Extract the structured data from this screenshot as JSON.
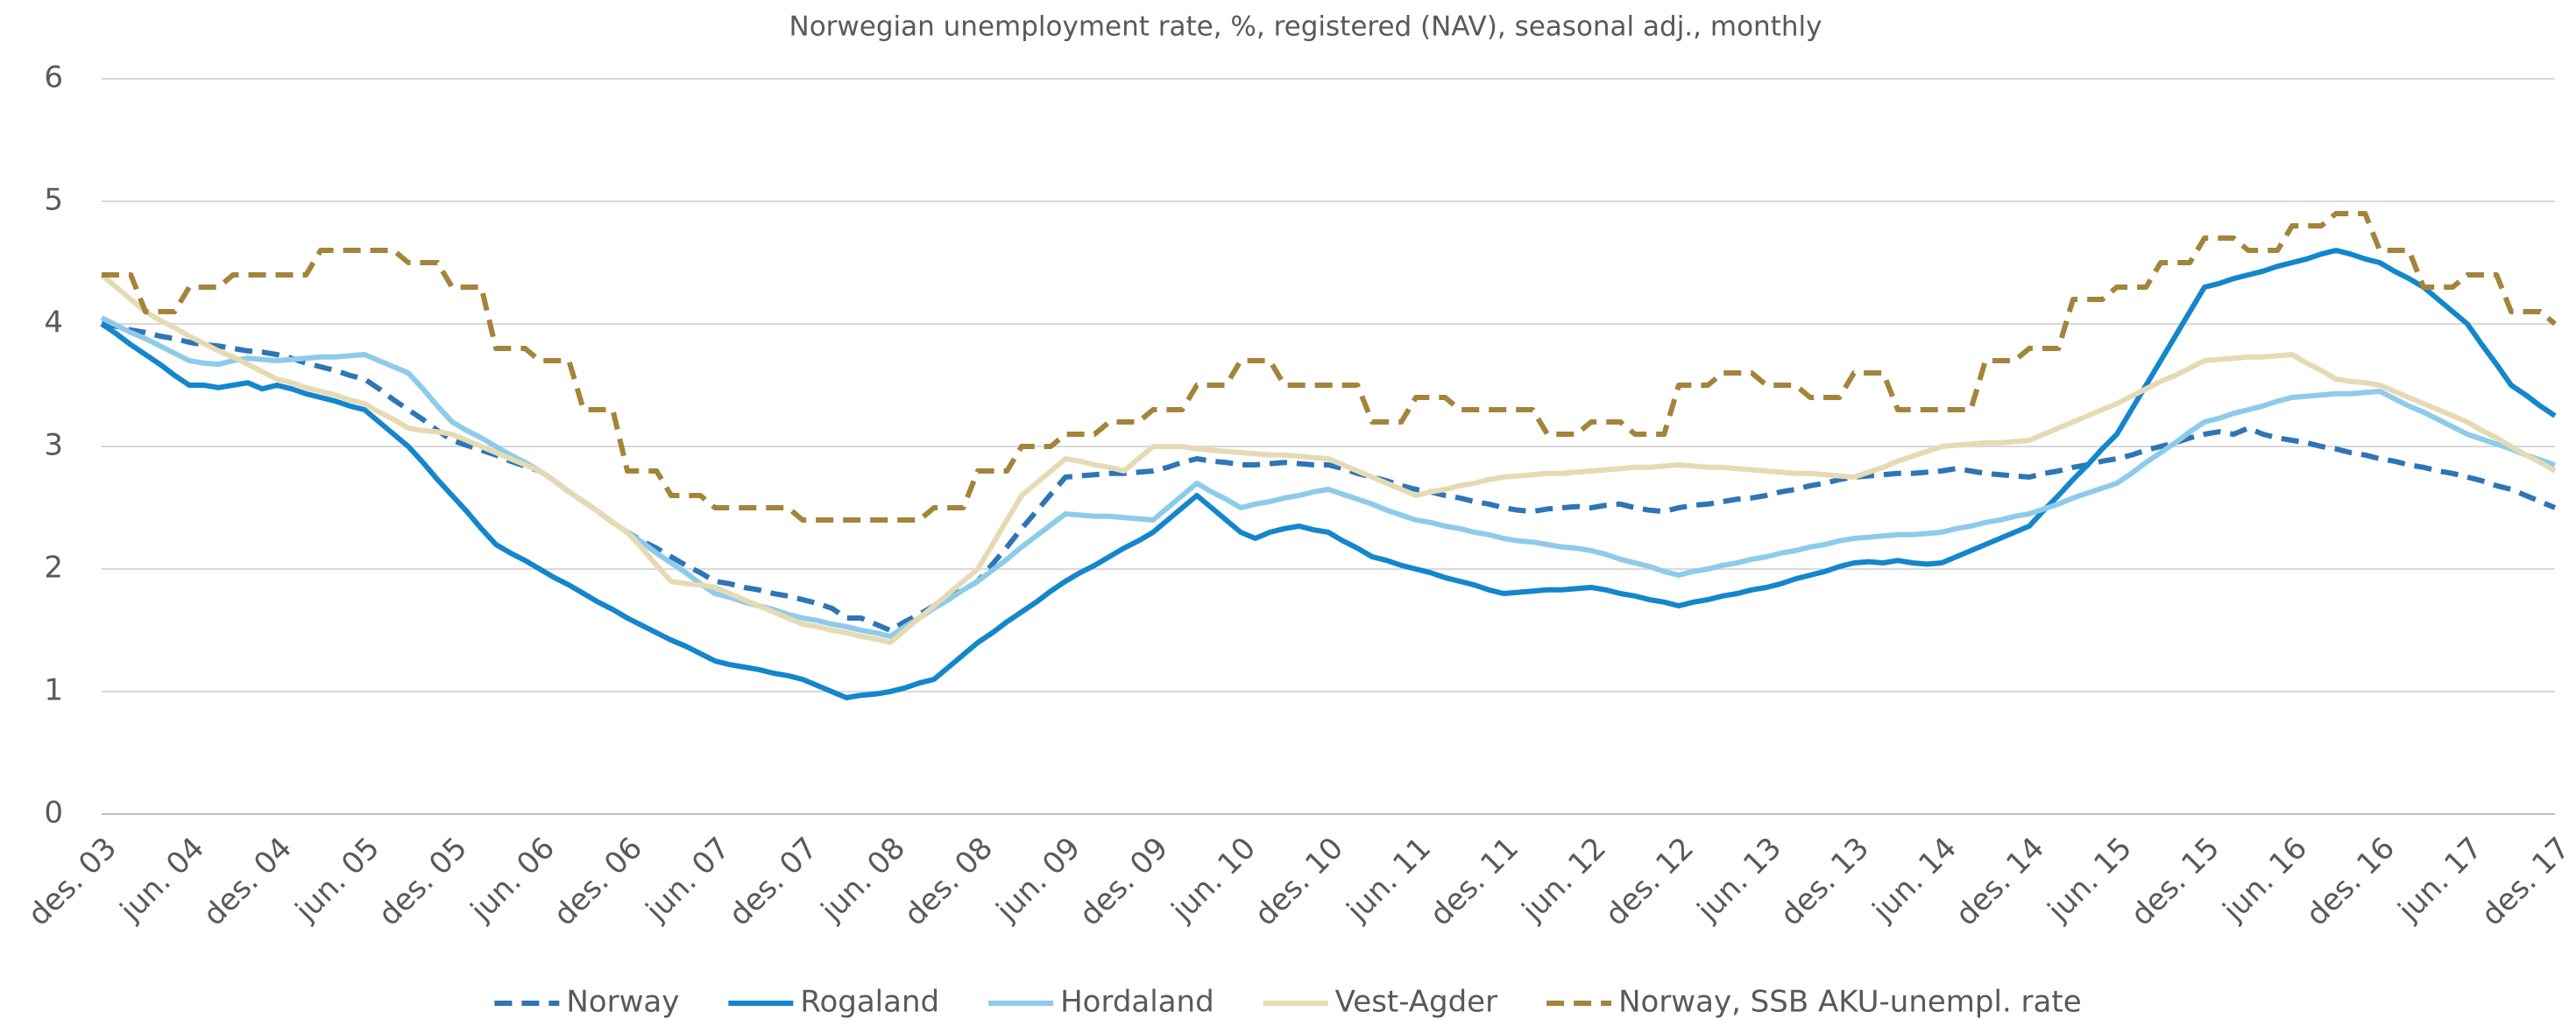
{
  "chart_data": {
    "type": "line",
    "title": "Norwegian unemployment rate, %, registered (NAV), seasonal adj., monthly",
    "categories": [
      "des. 03",
      null,
      null,
      null,
      null,
      null,
      "jun. 04",
      null,
      null,
      null,
      null,
      null,
      "des. 04",
      null,
      null,
      null,
      null,
      null,
      "jun. 05",
      null,
      null,
      null,
      null,
      null,
      "des. 05",
      null,
      null,
      null,
      null,
      null,
      "jun. 06",
      null,
      null,
      null,
      null,
      null,
      "des. 06",
      null,
      null,
      null,
      null,
      null,
      "jun. 07",
      null,
      null,
      null,
      null,
      null,
      "des. 07",
      null,
      null,
      null,
      null,
      null,
      "jun. 08",
      null,
      null,
      null,
      null,
      null,
      "des. 08",
      null,
      null,
      null,
      null,
      null,
      "jun. 09",
      null,
      null,
      null,
      null,
      null,
      "des. 09",
      null,
      null,
      null,
      null,
      null,
      "jun. 10",
      null,
      null,
      null,
      null,
      null,
      "des. 10",
      null,
      null,
      null,
      null,
      null,
      "jun. 11",
      null,
      null,
      null,
      null,
      null,
      "des. 11",
      null,
      null,
      null,
      null,
      null,
      "jun. 12",
      null,
      null,
      null,
      null,
      null,
      "des. 12",
      null,
      null,
      null,
      null,
      null,
      "jun. 13",
      null,
      null,
      null,
      null,
      null,
      "des. 13",
      null,
      null,
      null,
      null,
      null,
      "jun. 14",
      null,
      null,
      null,
      null,
      null,
      "des. 14",
      null,
      null,
      null,
      null,
      null,
      "jun. 15",
      null,
      null,
      null,
      null,
      null,
      "des. 15",
      null,
      null,
      null,
      null,
      null,
      "jun. 16",
      null,
      null,
      null,
      null,
      null,
      "des. 16",
      null,
      null,
      null,
      null,
      null,
      "jun. 17",
      null,
      null,
      null,
      null,
      null,
      "des. 17"
    ],
    "series": [
      {
        "name": "Norway",
        "color": "#2e75b6",
        "dashed": true,
        "values": [
          4.0,
          3.98,
          3.95,
          3.93,
          3.9,
          3.88,
          3.85,
          3.83,
          3.82,
          3.8,
          3.78,
          3.77,
          3.75,
          3.72,
          3.68,
          3.65,
          3.62,
          3.58,
          3.55,
          3.47,
          3.38,
          3.3,
          3.22,
          3.13,
          3.05,
          3.01,
          2.97,
          2.93,
          2.88,
          2.84,
          2.8,
          2.72,
          2.63,
          2.55,
          2.47,
          2.38,
          2.3,
          2.23,
          2.17,
          2.1,
          2.03,
          1.97,
          1.9,
          1.88,
          1.85,
          1.83,
          1.8,
          1.78,
          1.75,
          1.72,
          1.68,
          1.6,
          1.6,
          1.55,
          1.5,
          1.57,
          1.63,
          1.7,
          1.77,
          1.83,
          1.9,
          2.04,
          2.18,
          2.33,
          2.47,
          2.61,
          2.75,
          2.76,
          2.77,
          2.78,
          2.78,
          2.79,
          2.8,
          2.83,
          2.87,
          2.9,
          2.88,
          2.87,
          2.85,
          2.85,
          2.86,
          2.87,
          2.86,
          2.85,
          2.85,
          2.82,
          2.78,
          2.75,
          2.72,
          2.68,
          2.65,
          2.63,
          2.6,
          2.58,
          2.55,
          2.53,
          2.5,
          2.48,
          2.47,
          2.49,
          2.5,
          2.51,
          2.5,
          2.52,
          2.53,
          2.5,
          2.48,
          2.47,
          2.5,
          2.52,
          2.53,
          2.55,
          2.57,
          2.58,
          2.6,
          2.63,
          2.65,
          2.68,
          2.7,
          2.73,
          2.75,
          2.76,
          2.77,
          2.78,
          2.78,
          2.79,
          2.8,
          2.82,
          2.8,
          2.78,
          2.77,
          2.76,
          2.75,
          2.78,
          2.8,
          2.83,
          2.85,
          2.88,
          2.9,
          2.93,
          2.97,
          3.0,
          3.03,
          3.07,
          3.1,
          3.12,
          3.1,
          3.15,
          3.1,
          3.07,
          3.05,
          3.03,
          3.0,
          2.98,
          2.95,
          2.93,
          2.9,
          2.88,
          2.85,
          2.83,
          2.8,
          2.78,
          2.75,
          2.72,
          2.68,
          2.65,
          2.6,
          2.55,
          2.5
        ]
      },
      {
        "name": "Rogaland",
        "color": "#1386cc",
        "dashed": false,
        "values": [
          4.0,
          3.92,
          3.83,
          3.75,
          3.67,
          3.58,
          3.5,
          3.5,
          3.48,
          3.5,
          3.52,
          3.47,
          3.5,
          3.47,
          3.43,
          3.4,
          3.37,
          3.33,
          3.3,
          3.2,
          3.1,
          3.0,
          2.87,
          2.73,
          2.6,
          2.47,
          2.33,
          2.2,
          2.13,
          2.07,
          2.0,
          1.93,
          1.87,
          1.8,
          1.73,
          1.67,
          1.6,
          1.54,
          1.48,
          1.42,
          1.37,
          1.31,
          1.25,
          1.22,
          1.2,
          1.18,
          1.15,
          1.13,
          1.1,
          1.05,
          1.0,
          0.95,
          0.97,
          0.98,
          1.0,
          1.03,
          1.07,
          1.1,
          1.2,
          1.3,
          1.4,
          1.48,
          1.57,
          1.65,
          1.73,
          1.82,
          1.9,
          1.97,
          2.03,
          2.1,
          2.17,
          2.23,
          2.3,
          2.4,
          2.5,
          2.6,
          2.5,
          2.4,
          2.3,
          2.25,
          2.3,
          2.33,
          2.35,
          2.32,
          2.3,
          2.23,
          2.17,
          2.1,
          2.07,
          2.03,
          2.0,
          1.97,
          1.93,
          1.9,
          1.87,
          1.83,
          1.8,
          1.81,
          1.82,
          1.83,
          1.83,
          1.84,
          1.85,
          1.83,
          1.8,
          1.78,
          1.75,
          1.73,
          1.7,
          1.73,
          1.75,
          1.78,
          1.8,
          1.83,
          1.85,
          1.88,
          1.92,
          1.95,
          1.98,
          2.02,
          2.05,
          2.06,
          2.05,
          2.07,
          2.05,
          2.04,
          2.05,
          2.1,
          2.15,
          2.2,
          2.25,
          2.3,
          2.35,
          2.48,
          2.6,
          2.73,
          2.85,
          2.98,
          3.1,
          3.3,
          3.5,
          3.7,
          3.9,
          4.1,
          4.3,
          4.33,
          4.37,
          4.4,
          4.43,
          4.47,
          4.5,
          4.53,
          4.57,
          4.6,
          4.57,
          4.53,
          4.5,
          4.43,
          4.37,
          4.3,
          4.2,
          4.1,
          4.0,
          3.83,
          3.67,
          3.5,
          3.42,
          3.33,
          3.25
        ]
      },
      {
        "name": "Hordaland",
        "color": "#8dcbeb",
        "dashed": false,
        "values": [
          4.05,
          3.99,
          3.93,
          3.88,
          3.82,
          3.76,
          3.7,
          3.68,
          3.67,
          3.7,
          3.72,
          3.71,
          3.7,
          3.71,
          3.72,
          3.73,
          3.73,
          3.74,
          3.75,
          3.7,
          3.65,
          3.6,
          3.47,
          3.33,
          3.2,
          3.13,
          3.07,
          3.0,
          2.93,
          2.87,
          2.8,
          2.72,
          2.63,
          2.55,
          2.47,
          2.38,
          2.3,
          2.22,
          2.13,
          2.05,
          1.97,
          1.88,
          1.8,
          1.77,
          1.73,
          1.7,
          1.67,
          1.63,
          1.6,
          1.58,
          1.55,
          1.53,
          1.5,
          1.48,
          1.45,
          1.53,
          1.6,
          1.68,
          1.75,
          1.83,
          1.9,
          1.99,
          2.08,
          2.18,
          2.27,
          2.36,
          2.45,
          2.44,
          2.43,
          2.43,
          2.42,
          2.41,
          2.4,
          2.5,
          2.6,
          2.7,
          2.63,
          2.57,
          2.5,
          2.53,
          2.55,
          2.58,
          2.6,
          2.63,
          2.65,
          2.61,
          2.57,
          2.53,
          2.48,
          2.44,
          2.4,
          2.38,
          2.35,
          2.33,
          2.3,
          2.28,
          2.25,
          2.23,
          2.22,
          2.2,
          2.18,
          2.17,
          2.15,
          2.12,
          2.08,
          2.05,
          2.02,
          1.98,
          1.95,
          1.98,
          2.0,
          2.03,
          2.05,
          2.08,
          2.1,
          2.13,
          2.15,
          2.18,
          2.2,
          2.23,
          2.25,
          2.26,
          2.27,
          2.28,
          2.28,
          2.29,
          2.3,
          2.33,
          2.35,
          2.38,
          2.4,
          2.43,
          2.45,
          2.49,
          2.53,
          2.58,
          2.62,
          2.66,
          2.7,
          2.78,
          2.87,
          2.95,
          3.03,
          3.12,
          3.2,
          3.23,
          3.27,
          3.3,
          3.33,
          3.37,
          3.4,
          3.41,
          3.42,
          3.43,
          3.43,
          3.44,
          3.45,
          3.39,
          3.33,
          3.28,
          3.22,
          3.16,
          3.1,
          3.06,
          3.02,
          2.98,
          2.93,
          2.89,
          2.85
        ]
      },
      {
        "name": "Vest-Agder",
        "color": "#e6dab4",
        "dashed": false,
        "values": [
          4.4,
          4.3,
          4.2,
          4.1,
          4.03,
          3.97,
          3.9,
          3.84,
          3.78,
          3.73,
          3.67,
          3.61,
          3.55,
          3.52,
          3.48,
          3.45,
          3.42,
          3.38,
          3.35,
          3.28,
          3.22,
          3.15,
          3.13,
          3.12,
          3.1,
          3.05,
          3.0,
          2.95,
          2.9,
          2.85,
          2.8,
          2.72,
          2.63,
          2.55,
          2.47,
          2.38,
          2.3,
          2.17,
          2.03,
          1.9,
          1.88,
          1.87,
          1.85,
          1.8,
          1.75,
          1.7,
          1.65,
          1.6,
          1.55,
          1.53,
          1.5,
          1.48,
          1.45,
          1.43,
          1.4,
          1.5,
          1.6,
          1.7,
          1.8,
          1.9,
          2.0,
          2.2,
          2.4,
          2.6,
          2.7,
          2.8,
          2.9,
          2.88,
          2.85,
          2.83,
          2.8,
          2.9,
          3.0,
          3.0,
          3.0,
          2.98,
          2.97,
          2.96,
          2.95,
          2.94,
          2.93,
          2.93,
          2.92,
          2.91,
          2.9,
          2.85,
          2.8,
          2.75,
          2.7,
          2.65,
          2.6,
          2.63,
          2.65,
          2.68,
          2.7,
          2.73,
          2.75,
          2.76,
          2.77,
          2.78,
          2.78,
          2.79,
          2.8,
          2.81,
          2.82,
          2.83,
          2.83,
          2.84,
          2.85,
          2.84,
          2.83,
          2.83,
          2.82,
          2.81,
          2.8,
          2.79,
          2.78,
          2.78,
          2.77,
          2.76,
          2.75,
          2.79,
          2.83,
          2.88,
          2.92,
          2.96,
          3.0,
          3.01,
          3.02,
          3.03,
          3.03,
          3.04,
          3.05,
          3.1,
          3.15,
          3.2,
          3.25,
          3.3,
          3.35,
          3.41,
          3.47,
          3.53,
          3.58,
          3.64,
          3.7,
          3.71,
          3.72,
          3.73,
          3.73,
          3.74,
          3.75,
          3.68,
          3.62,
          3.55,
          3.53,
          3.52,
          3.5,
          3.45,
          3.4,
          3.35,
          3.3,
          3.25,
          3.2,
          3.13,
          3.07,
          3.0,
          2.93,
          2.87,
          2.8
        ]
      },
      {
        "name": "Norway, SSB AKU-unempl. rate",
        "color": "#a3843a",
        "dashed": true,
        "values": [
          4.4,
          4.4,
          4.4,
          4.1,
          4.1,
          4.1,
          4.3,
          4.3,
          4.3,
          4.4,
          4.4,
          4.4,
          4.4,
          4.4,
          4.4,
          4.6,
          4.6,
          4.6,
          4.6,
          4.6,
          4.6,
          4.5,
          4.5,
          4.5,
          4.3,
          4.3,
          4.3,
          3.8,
          3.8,
          3.8,
          3.7,
          3.7,
          3.7,
          3.3,
          3.3,
          3.3,
          2.8,
          2.8,
          2.8,
          2.6,
          2.6,
          2.6,
          2.5,
          2.5,
          2.5,
          2.5,
          2.5,
          2.5,
          2.4,
          2.4,
          2.4,
          2.4,
          2.4,
          2.4,
          2.4,
          2.4,
          2.4,
          2.5,
          2.5,
          2.5,
          2.8,
          2.8,
          2.8,
          3.0,
          3.0,
          3.0,
          3.1,
          3.1,
          3.1,
          3.2,
          3.2,
          3.2,
          3.3,
          3.3,
          3.3,
          3.5,
          3.5,
          3.5,
          3.7,
          3.7,
          3.7,
          3.5,
          3.5,
          3.5,
          3.5,
          3.5,
          3.5,
          3.2,
          3.2,
          3.2,
          3.4,
          3.4,
          3.4,
          3.3,
          3.3,
          3.3,
          3.3,
          3.3,
          3.3,
          3.1,
          3.1,
          3.1,
          3.2,
          3.2,
          3.2,
          3.1,
          3.1,
          3.1,
          3.5,
          3.5,
          3.5,
          3.6,
          3.6,
          3.6,
          3.5,
          3.5,
          3.5,
          3.4,
          3.4,
          3.4,
          3.6,
          3.6,
          3.6,
          3.3,
          3.3,
          3.3,
          3.3,
          3.3,
          3.3,
          3.7,
          3.7,
          3.7,
          3.8,
          3.8,
          3.8,
          4.2,
          4.2,
          4.2,
          4.3,
          4.3,
          4.3,
          4.5,
          4.5,
          4.5,
          4.7,
          4.7,
          4.7,
          4.6,
          4.6,
          4.6,
          4.8,
          4.8,
          4.8,
          4.9,
          4.9,
          4.9,
          4.6,
          4.6,
          4.6,
          4.3,
          4.3,
          4.3,
          4.4,
          4.4,
          4.4,
          4.1,
          4.1,
          4.1,
          4.0
        ]
      }
    ],
    "ylim": [
      0,
      6
    ],
    "yticks": [
      0,
      1,
      2,
      3,
      4,
      5,
      6
    ],
    "grid": true,
    "legend": "bottom"
  }
}
